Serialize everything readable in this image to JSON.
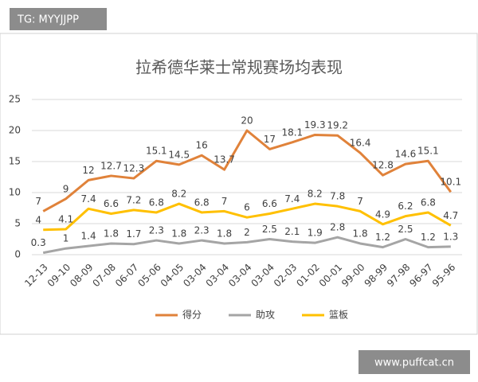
{
  "watermark_top": "TG: MYYJJPP",
  "watermark_bottom": "www.puffcat.cn",
  "chart_data": {
    "type": "line",
    "title": "拉希德华莱士常规赛场均表现",
    "categories": [
      "12-13",
      "09-10",
      "08-09",
      "07-08",
      "06-07",
      "05-06",
      "04-05",
      "03-04",
      "03-04",
      "03-04",
      "03-04",
      "02-03",
      "01-02",
      "00-01",
      "99-00",
      "98-99",
      "97-98",
      "96-97",
      "95-96"
    ],
    "series": [
      {
        "name": "得分",
        "color": "#e0823a",
        "values": [
          7,
          9,
          12,
          12.7,
          12.3,
          15.1,
          14.5,
          16,
          13.7,
          20,
          17,
          18.1,
          19.3,
          19.2,
          16.4,
          12.8,
          14.6,
          15.1,
          10.1
        ]
      },
      {
        "name": "助攻",
        "color": "#a5a5a5",
        "values": [
          0.3,
          1,
          1.4,
          1.8,
          1.7,
          2.3,
          1.8,
          2.3,
          1.8,
          2,
          2.5,
          2.1,
          1.9,
          2.8,
          1.8,
          1.2,
          2.5,
          1.2,
          1.3
        ]
      },
      {
        "name": "篮板",
        "color": "#ffc000",
        "values": [
          4,
          4.1,
          7.4,
          6.6,
          7.2,
          6.8,
          8.2,
          6.8,
          7,
          6,
          6.6,
          7.4,
          8.2,
          7.8,
          7,
          4.9,
          6.2,
          6.8,
          4.7
        ]
      }
    ],
    "ylim": [
      0,
      25
    ],
    "yticks": [
      0,
      5,
      10,
      15,
      20,
      25
    ],
    "grid": true,
    "legend": "bottom"
  }
}
